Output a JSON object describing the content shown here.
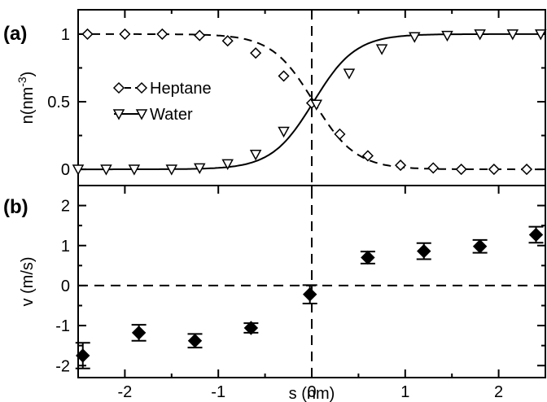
{
  "chart_data": [
    {
      "type": "line",
      "panel_label": "(a)",
      "ylabel": "n(nm",
      "ylabel_sup": "-3",
      "ylabel_close": ")",
      "xlim": [
        -2.5,
        2.5
      ],
      "ylim": [
        -0.12,
        1.18
      ],
      "yticks": [
        0,
        0.5,
        1
      ],
      "ytick_labels": [
        "0",
        "0.5",
        "1"
      ],
      "legend_placement": "center-left",
      "series": [
        {
          "name": "Heptane",
          "marker": "diamond-open",
          "line": "dashed",
          "x": [
            -2.45,
            -1.85,
            -1.85,
            -1.25,
            -0.95,
            -0.65,
            -0.35,
            -0.05,
            0.25,
            0.55,
            0.85,
            1.15,
            1.45,
            1.75,
            2.05,
            2.35
          ],
          "points": [
            [
              -2.4,
              1.0
            ],
            [
              -2.0,
              1.0
            ],
            [
              -1.6,
              1.0
            ],
            [
              -1.2,
              0.99
            ],
            [
              -0.9,
              0.95
            ],
            [
              -0.6,
              0.86
            ],
            [
              -0.3,
              0.69
            ],
            [
              0.0,
              0.49
            ],
            [
              0.3,
              0.26
            ],
            [
              0.6,
              0.1
            ],
            [
              0.95,
              0.03
            ],
            [
              1.3,
              0.01
            ],
            [
              1.6,
              0.0
            ],
            [
              1.95,
              0.0
            ],
            [
              2.3,
              0.0
            ]
          ]
        },
        {
          "name": "Water",
          "marker": "triangle-down-open",
          "line": "solid",
          "points": [
            [
              -2.5,
              0.0
            ],
            [
              -2.2,
              0.0
            ],
            [
              -1.9,
              0.0
            ],
            [
              -1.5,
              0.0
            ],
            [
              -1.2,
              0.01
            ],
            [
              -0.9,
              0.04
            ],
            [
              -0.6,
              0.11
            ],
            [
              -0.3,
              0.28
            ],
            [
              0.05,
              0.48
            ],
            [
              0.4,
              0.71
            ],
            [
              0.75,
              0.89
            ],
            [
              1.1,
              0.98
            ],
            [
              1.45,
              0.99
            ],
            [
              1.8,
              1.0
            ],
            [
              2.15,
              1.0
            ],
            [
              2.45,
              1.0
            ]
          ]
        }
      ]
    },
    {
      "type": "scatter",
      "panel_label": "(b)",
      "ylabel": "v (m/s)",
      "xlabel": "s (nm)",
      "xlim": [
        -2.5,
        2.5
      ],
      "ylim": [
        -2.3,
        2.5
      ],
      "xticks": [
        -2,
        -1,
        0,
        1,
        2
      ],
      "xtick_labels": [
        "-2",
        "-1",
        "0",
        "1",
        "2"
      ],
      "yticks": [
        -2,
        -1,
        0,
        1,
        2
      ],
      "ytick_labels": [
        "-2",
        "-1",
        "0",
        "1",
        "2"
      ],
      "reference_lines": {
        "horizontal_y": 0,
        "vertical_x": 0,
        "style": "dashed"
      },
      "series": [
        {
          "marker": "diamond-filled",
          "points": [
            {
              "x": -2.45,
              "y": -1.75,
              "err": 0.32
            },
            {
              "x": -1.85,
              "y": -1.18,
              "err": 0.2
            },
            {
              "x": -1.25,
              "y": -1.38,
              "err": 0.17
            },
            {
              "x": -0.65,
              "y": -1.06,
              "err": 0.12
            },
            {
              "x": -0.02,
              "y": -0.22,
              "err": 0.23
            },
            {
              "x": 0.6,
              "y": 0.7,
              "err": 0.15
            },
            {
              "x": 1.2,
              "y": 0.86,
              "err": 0.2
            },
            {
              "x": 1.8,
              "y": 0.98,
              "err": 0.16
            },
            {
              "x": 2.4,
              "y": 1.27,
              "err": 0.2
            }
          ]
        }
      ]
    }
  ]
}
